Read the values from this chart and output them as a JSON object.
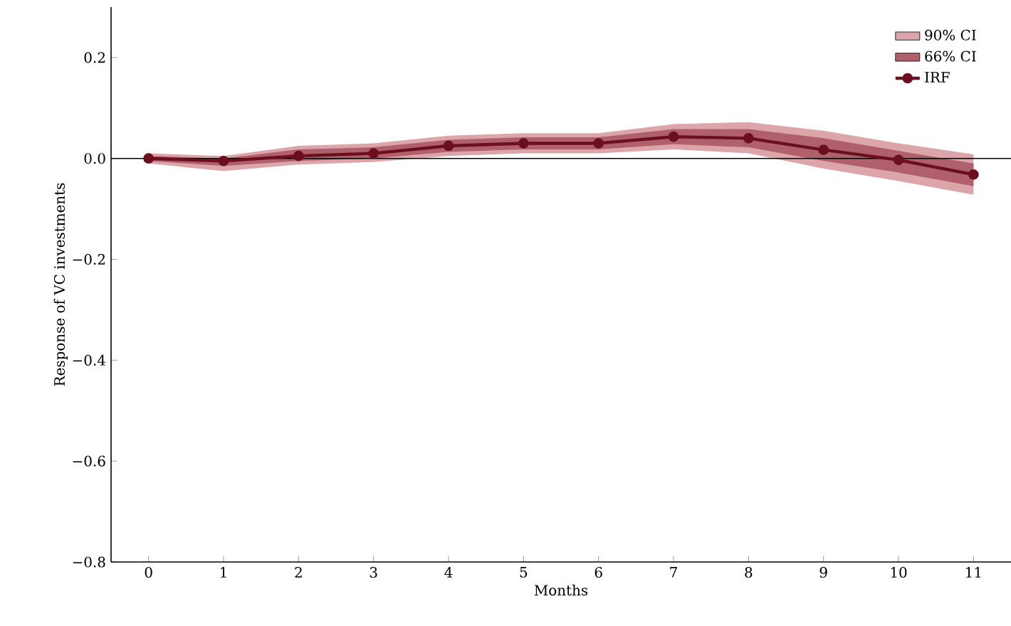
{
  "chart_data": {
    "type": "line",
    "xlabel": "Months",
    "ylabel": "Response of VC investments",
    "x": [
      0,
      1,
      2,
      3,
      4,
      5,
      6,
      7,
      8,
      9,
      10,
      11
    ],
    "xlim": [
      -0.5,
      11.5
    ],
    "ylim": [
      -0.8,
      0.3
    ],
    "xticks": [
      0,
      1,
      2,
      3,
      4,
      5,
      6,
      7,
      8,
      9,
      10,
      11
    ],
    "yticks": [
      {
        "value": -0.8,
        "label": "−0.8"
      },
      {
        "value": -0.6,
        "label": "−0.6"
      },
      {
        "value": -0.4,
        "label": "−0.4"
      },
      {
        "value": -0.2,
        "label": "−0.2"
      },
      {
        "value": 0.0,
        "label": "0.0"
      },
      {
        "value": 0.2,
        "label": "0.2"
      }
    ],
    "series": [
      {
        "name": "90% CI",
        "color": "#dca5aa",
        "values": [
          null,
          null,
          null,
          null,
          null,
          null,
          null,
          null,
          null,
          null,
          null,
          null
        ],
        "lower": [
          -0.01,
          -0.025,
          -0.012,
          -0.007,
          0.005,
          0.01,
          0.01,
          0.018,
          0.01,
          -0.02,
          -0.045,
          -0.072
        ],
        "upper": [
          0.01,
          0.005,
          0.025,
          0.03,
          0.045,
          0.05,
          0.05,
          0.068,
          0.072,
          0.055,
          0.03,
          0.008
        ]
      },
      {
        "name": "66% CI",
        "color": "#b0606c",
        "values": [
          null,
          null,
          null,
          null,
          null,
          null,
          null,
          null,
          null,
          null,
          null,
          null
        ],
        "lower": [
          -0.005,
          -0.015,
          -0.005,
          0.0,
          0.013,
          0.018,
          0.018,
          0.028,
          0.022,
          -0.005,
          -0.028,
          -0.055
        ],
        "upper": [
          0.005,
          0.0,
          0.018,
          0.022,
          0.037,
          0.042,
          0.042,
          0.058,
          0.058,
          0.04,
          0.015,
          -0.01
        ]
      },
      {
        "name": "IRF",
        "color": "#6b0f1f",
        "values": [
          0,
          -0.005,
          0.005,
          0.01,
          0.025,
          0.03,
          0.03,
          0.043,
          0.04,
          0.017,
          -0.003,
          -0.032
        ]
      }
    ],
    "ref_lines": [
      {
        "axis": "y",
        "value": 0,
        "color": "#000000"
      }
    ],
    "legend": "top right",
    "marker": "circle",
    "line_style": "solid",
    "grid": false
  }
}
